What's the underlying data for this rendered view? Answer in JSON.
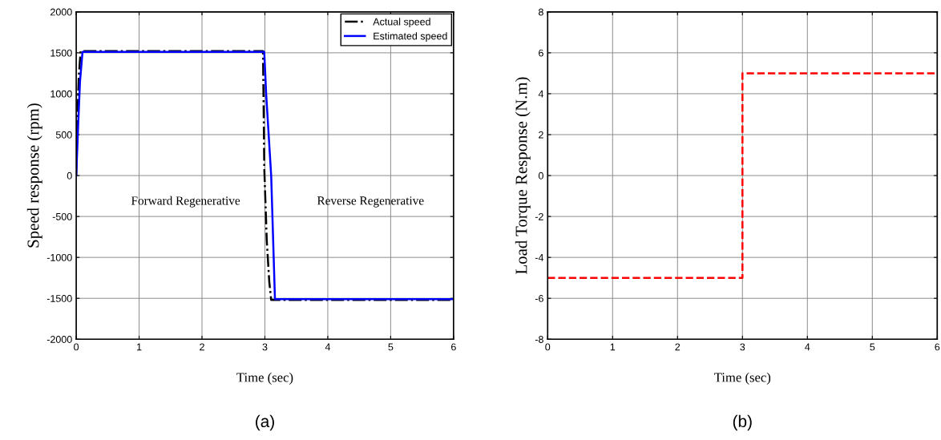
{
  "chart_data": [
    {
      "type": "line",
      "xlabel": "Time (sec)",
      "ylabel": "Speed response (rpm)",
      "xlim": [
        0,
        6
      ],
      "ylim": [
        -2000,
        2000
      ],
      "xticks": [
        0,
        1,
        2,
        3,
        4,
        5,
        6
      ],
      "yticks": [
        -2000,
        -1500,
        -1000,
        -500,
        0,
        500,
        1000,
        1500,
        2000
      ],
      "grid": true,
      "legend": "top right",
      "series": [
        {
          "name": "Actual speed",
          "color": "#000000",
          "line_style": "dashdot",
          "x": [
            0,
            0.02,
            0.04,
            0.07,
            2.97,
            2.99,
            3.03,
            3.07,
            3.1,
            6
          ],
          "values": [
            0,
            700,
            1200,
            1520,
            1520,
            100,
            -800,
            -1300,
            -1520,
            -1520
          ]
        },
        {
          "name": "Estimated speed",
          "color": "#0000ff",
          "line_style": "solid",
          "x": [
            0,
            0.03,
            0.06,
            0.1,
            2.99,
            3.02,
            3.1,
            3.16,
            6
          ],
          "values": [
            0,
            600,
            1150,
            1510,
            1510,
            1000,
            0,
            -1510,
            -1510
          ]
        }
      ],
      "annotations": [
        "Forward Regenerative",
        "Reverse Regenerative",
        "(a)"
      ]
    },
    {
      "type": "line",
      "xlabel": "Time (sec)",
      "ylabel": "Load Torque Response (N.m)",
      "xlim": [
        0,
        6
      ],
      "ylim": [
        -8,
        8
      ],
      "xticks": [
        0,
        1,
        2,
        3,
        4,
        5,
        6
      ],
      "yticks": [
        -8,
        -6,
        -4,
        -2,
        0,
        2,
        4,
        6,
        8
      ],
      "grid": true,
      "series": [
        {
          "color": "#ff0000",
          "line_style": "dashed",
          "x": [
            0,
            3,
            3,
            6
          ],
          "values": [
            -5,
            -5,
            5,
            5
          ]
        }
      ],
      "annotations": [
        "(b)"
      ]
    }
  ]
}
